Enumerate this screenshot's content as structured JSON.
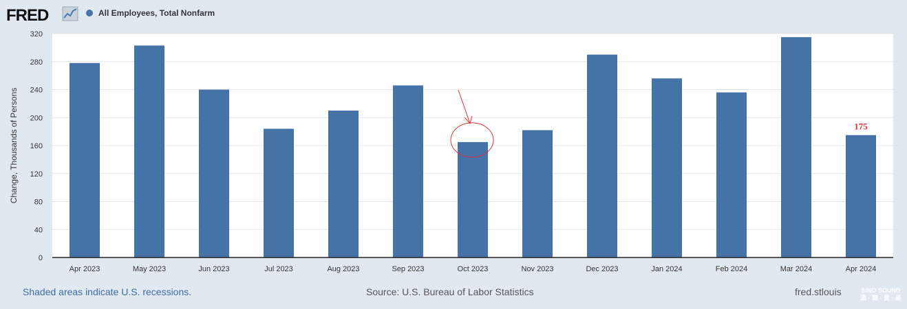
{
  "header": {
    "logo_text": "FRED",
    "logo_icon": "fred-line-icon",
    "legend_label": "All Employees, Total Nonfarm",
    "legend_color": "#4572a7"
  },
  "chart_data": {
    "type": "bar",
    "categories": [
      "Apr 2023",
      "May 2023",
      "Jun 2023",
      "Jul 2023",
      "Aug 2023",
      "Sep 2023",
      "Oct 2023",
      "Nov 2023",
      "Dec 2023",
      "Jan 2024",
      "Feb 2024",
      "Mar 2024",
      "Apr 2024"
    ],
    "values": [
      278,
      303,
      240,
      184,
      210,
      246,
      165,
      182,
      290,
      256,
      236,
      315,
      175
    ],
    "ylabel": "Change, Thousands of Persons",
    "ylim": [
      0,
      320
    ],
    "yticks": [
      0,
      40,
      80,
      120,
      160,
      200,
      240,
      280,
      320
    ],
    "bar_color": "#4572a7",
    "grid": true,
    "annotations": [
      {
        "category": "Apr 2024",
        "text": "175",
        "color": "#e0303a"
      },
      {
        "category": "Oct 2023",
        "type": "circle-with-arrow",
        "color": "#e0303a"
      }
    ]
  },
  "footer": {
    "left": "Shaded areas indicate U.S. recessions.",
    "middle": "Source: U.S. Bureau of Labor Statistics",
    "right": "fred.stlouis"
  },
  "watermark": {
    "line1": "SINO SOUND",
    "line2": "澳 · 聲 · 貿 · 易"
  }
}
